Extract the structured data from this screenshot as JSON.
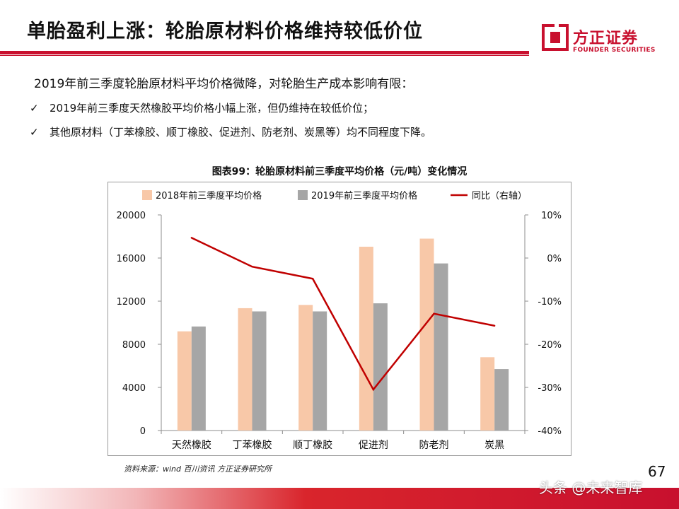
{
  "slide": {
    "title": "单胎盈利上涨：轮胎原材料价格维持较低价位",
    "logo_cn": "方正证券",
    "logo_en": "FOUNDER SECURITIES",
    "intro": "2019年前三季度轮胎原材料平均价格微降，对轮胎生产成本影响有限：",
    "bullets": [
      {
        "check": "✓",
        "text": "2019年前三季度天然橡胶平均价格小幅上涨，但仍维持在较低价位；"
      },
      {
        "check": "✓",
        "text": "其他原材料（丁苯橡胶、顺丁橡胶、促进剂、防老剂、炭黑等）均不同程度下降。"
      }
    ],
    "figure_caption": "图表99：轮胎原材料前三季度平均价格（元/吨）变化情况",
    "source": "资料来源：wind 百川资讯 方正证券研究所",
    "page_number": "67",
    "watermark": "头条 @未来智库"
  },
  "colors": {
    "accent": "#c8102e",
    "series_2018": "#f8c8a8",
    "series_2019": "#a6a6a6",
    "yoy_line": "#c00000"
  },
  "chart_data": {
    "type": "bar",
    "categories": [
      "天然橡胶",
      "丁苯橡胶",
      "顺丁橡胶",
      "促进剂",
      "防老剂",
      "炭黑"
    ],
    "series": [
      {
        "name": "2018年前三季度平均价格",
        "type": "bar",
        "axis": "left",
        "color": "#f8c8a8",
        "values": [
          9200,
          11350,
          11650,
          17050,
          17800,
          6800
        ]
      },
      {
        "name": "2019年前三季度平均价格",
        "type": "bar",
        "axis": "left",
        "color": "#a6a6a6",
        "values": [
          9650,
          11050,
          11050,
          11800,
          15500,
          5700
        ]
      },
      {
        "name": "同比（右轴）",
        "type": "line",
        "axis": "right",
        "color": "#c00000",
        "values": [
          4.7,
          -2.0,
          -4.8,
          -30.5,
          -12.9,
          -15.7
        ]
      }
    ],
    "y_left": {
      "min": 0,
      "max": 20000,
      "ticks": [
        0,
        4000,
        8000,
        12000,
        16000,
        20000
      ],
      "tick_labels": [
        "0",
        "4000",
        "8000",
        "12000",
        "16000",
        "20000"
      ]
    },
    "y_right": {
      "min": -40,
      "max": 10,
      "ticks": [
        -40,
        -30,
        -20,
        -10,
        0,
        10
      ],
      "tick_labels": [
        "-40%",
        "-30%",
        "-20%",
        "-10%",
        "0%",
        "10%"
      ]
    },
    "grid": false,
    "legend_position": "top"
  }
}
